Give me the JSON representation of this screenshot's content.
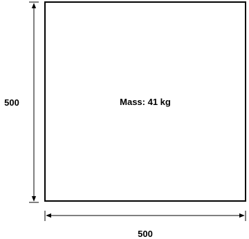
{
  "diagram": {
    "mass_label": "Mass: 41 kg",
    "width_label": "500",
    "height_label": "500"
  }
}
